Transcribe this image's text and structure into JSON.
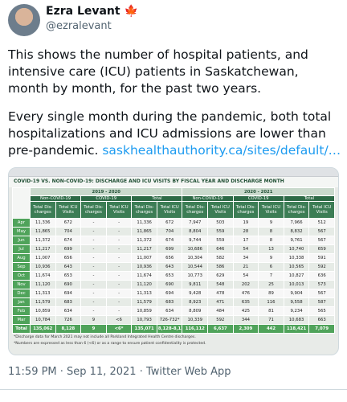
{
  "tweet": {
    "name": "Ezra Levant",
    "flag": "🍁",
    "handle": "@ezralevant",
    "paragraphs": [
      "This shows the number of hospital patients, and intensive care (ICU) patients in Saskatchewan, month by month, for the past two years.",
      "Every single month during the pandemic, both total hospitalizations and ICU admissions are lower than pre-pandemic."
    ],
    "link": "saskhealthauthority.ca/sites/default/…",
    "footer": "11:59 PM · Sep 11, 2021 · Twitter Web App"
  },
  "table": {
    "title": "COVID-19 VS. NON-COVID-19: DISCHARGE AND ICU VISITS BY FISCAL YEAR AND DISCHARGE MONTH",
    "years": [
      "2019 - 2020",
      "2020 - 2021"
    ],
    "groups": [
      "Non-COVID-19",
      "COVID-19",
      "Total",
      "Non-COVID-19",
      "COVID-19",
      "Total"
    ],
    "column_headers": [
      "Total Dis- charges",
      "Total ICU Visits",
      "Total Dis- charges",
      "Total ICU Visits",
      "Total Dis- charges",
      "Total ICU Visits",
      "Total Dis- charges",
      "Total ICU Visits",
      "Total Dis- charges",
      "Total ICU Visits",
      "Total Dis- charges",
      "Total ICU Visits"
    ],
    "rows": [
      [
        "Apr",
        "11,336",
        "672",
        "-",
        "-",
        "11,336",
        "672",
        "7,947",
        "503",
        "19",
        "9",
        "7,966",
        "512"
      ],
      [
        "May",
        "11,865",
        "704",
        "-",
        "-",
        "11,865",
        "704",
        "8,804",
        "559",
        "28",
        "8",
        "8,832",
        "567"
      ],
      [
        "Jun",
        "11,372",
        "674",
        "-",
        "-",
        "11,372",
        "674",
        "9,744",
        "559",
        "17",
        "8",
        "9,761",
        "567"
      ],
      [
        "Jul",
        "11,217",
        "699",
        "-",
        "-",
        "11,217",
        "699",
        "10,686",
        "646",
        "54",
        "13",
        "10,740",
        "659"
      ],
      [
        "Aug",
        "11,007",
        "656",
        "-",
        "-",
        "11,007",
        "656",
        "10,304",
        "582",
        "34",
        "9",
        "10,338",
        "591"
      ],
      [
        "Sep",
        "10,936",
        "643",
        "-",
        "-",
        "10,936",
        "643",
        "10,544",
        "586",
        "21",
        "6",
        "10,565",
        "592"
      ],
      [
        "Oct",
        "11,674",
        "653",
        "-",
        "-",
        "11,674",
        "653",
        "10,773",
        "629",
        "54",
        "7",
        "10,827",
        "636"
      ],
      [
        "Nov",
        "11,120",
        "690",
        "-",
        "-",
        "11,120",
        "690",
        "9,811",
        "548",
        "202",
        "25",
        "10,013",
        "573"
      ],
      [
        "Dec",
        "11,313",
        "694",
        "-",
        "-",
        "11,313",
        "694",
        "9,428",
        "478",
        "476",
        "89",
        "9,904",
        "567"
      ],
      [
        "Jan",
        "11,579",
        "683",
        "-",
        "-",
        "11,579",
        "683",
        "8,923",
        "471",
        "635",
        "116",
        "9,558",
        "587"
      ],
      [
        "Feb",
        "10,859",
        "634",
        "-",
        "-",
        "10,859",
        "634",
        "8,809",
        "484",
        "425",
        "81",
        "9,234",
        "565"
      ],
      [
        "Mar",
        "10,784",
        "726",
        "9",
        "<6",
        "10,793",
        "726-732*",
        "10,339",
        "592",
        "344",
        "71",
        "10,683",
        "663"
      ],
      [
        "Total",
        "135,062",
        "8,128",
        "9",
        "<6*",
        "135,071",
        "8,128-8,134*",
        "116,112",
        "6,637",
        "2,309",
        "442",
        "118,421",
        "7,079"
      ]
    ],
    "footnotes": [
      "*Discharge data for March 2021 may not include all Parkland Integrated Health Centre discharges.",
      "*Numbers are expressed as less than 6 (<6) or as a range to ensure patient confidentiality is protected."
    ]
  }
}
